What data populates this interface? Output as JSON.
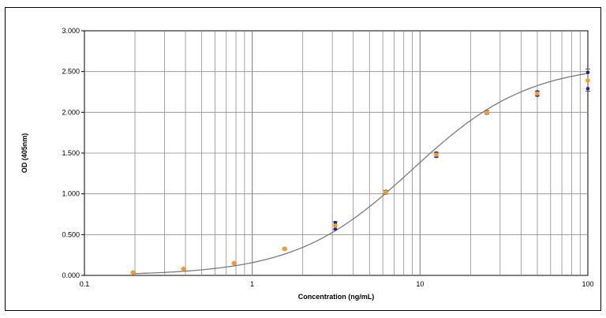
{
  "chart_data": {
    "type": "scatter",
    "title": "",
    "xlabel": "Concentration (ng/mL)",
    "ylabel": "OD (405nm)",
    "xscale": "log",
    "xlim": [
      0.1,
      100
    ],
    "ylim": [
      0,
      3.0
    ],
    "grid": true,
    "legend": "none",
    "x_tick_labels": [
      "0.1",
      "1",
      "10",
      "100"
    ],
    "y_tick_labels": [
      "0.000",
      "0.500",
      "1.000",
      "1.500",
      "2.000",
      "2.500",
      "3.000"
    ],
    "colors": {
      "curve": "#7a7a7a",
      "grid": "#8c8c8c",
      "replicate_points": "#1f1fa0",
      "mean_points": "#ff9a1e",
      "error_bars": "#555555"
    },
    "mean_points": [
      {
        "x": 0.195,
        "y": 0.035
      },
      {
        "x": 0.39,
        "y": 0.08
      },
      {
        "x": 0.78,
        "y": 0.15
      },
      {
        "x": 1.56,
        "y": 0.325
      },
      {
        "x": 3.125,
        "y": 0.61
      },
      {
        "x": 6.25,
        "y": 1.02
      },
      {
        "x": 12.5,
        "y": 1.48
      },
      {
        "x": 25,
        "y": 2.0
      },
      {
        "x": 50,
        "y": 2.23
      },
      {
        "x": 100,
        "y": 2.39
      }
    ],
    "replicate_points": [
      {
        "x": 0.195,
        "y": 0.03
      },
      {
        "x": 0.195,
        "y": 0.04
      },
      {
        "x": 0.39,
        "y": 0.075
      },
      {
        "x": 0.39,
        "y": 0.085
      },
      {
        "x": 0.78,
        "y": 0.145
      },
      {
        "x": 0.78,
        "y": 0.155
      },
      {
        "x": 1.56,
        "y": 0.32
      },
      {
        "x": 1.56,
        "y": 0.33
      },
      {
        "x": 3.125,
        "y": 0.57
      },
      {
        "x": 3.125,
        "y": 0.645
      },
      {
        "x": 6.25,
        "y": 1.01
      },
      {
        "x": 6.25,
        "y": 1.03
      },
      {
        "x": 12.5,
        "y": 1.46
      },
      {
        "x": 12.5,
        "y": 1.5
      },
      {
        "x": 25,
        "y": 1.99
      },
      {
        "x": 25,
        "y": 2.01
      },
      {
        "x": 50,
        "y": 2.21
      },
      {
        "x": 50,
        "y": 2.25
      },
      {
        "x": 100,
        "y": 2.29
      },
      {
        "x": 100,
        "y": 2.49
      }
    ],
    "error_bars": [
      {
        "x": 0.195,
        "low": 0.03,
        "high": 0.04
      },
      {
        "x": 0.39,
        "low": 0.075,
        "high": 0.085
      },
      {
        "x": 0.78,
        "low": 0.145,
        "high": 0.155
      },
      {
        "x": 1.56,
        "low": 0.315,
        "high": 0.335
      },
      {
        "x": 3.125,
        "low": 0.56,
        "high": 0.66
      },
      {
        "x": 6.25,
        "low": 1.0,
        "high": 1.04
      },
      {
        "x": 12.5,
        "low": 1.45,
        "high": 1.51
      },
      {
        "x": 25,
        "low": 1.98,
        "high": 2.02
      },
      {
        "x": 50,
        "low": 2.2,
        "high": 2.26
      },
      {
        "x": 100,
        "low": 2.26,
        "high": 2.53
      }
    ],
    "fit_curve": {
      "model": "4PL",
      "A": 0.0,
      "D": 2.6,
      "C": 9.0,
      "B": 1.25
    }
  }
}
